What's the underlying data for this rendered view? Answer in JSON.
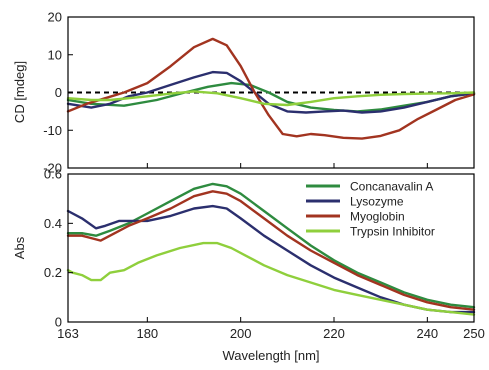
{
  "chart_data": [
    {
      "type": "line",
      "panel": "top",
      "ylabel": "CD [mdeg]",
      "xlim": [
        163,
        250
      ],
      "ylim": [
        -20,
        20
      ],
      "yticks": [
        "20",
        "10",
        "0",
        "-10",
        "-20"
      ],
      "grid": false,
      "zero_line": "dashed",
      "series": [
        {
          "name": "Concanavalin A",
          "color": "#2e8b3f",
          "points": [
            [
              163,
              -2
            ],
            [
              168,
              -3
            ],
            [
              175,
              -3.5
            ],
            [
              182,
              -2
            ],
            [
              188,
              0
            ],
            [
              193,
              1.5
            ],
            [
              198,
              2.5
            ],
            [
              202,
              2
            ],
            [
              206,
              0
            ],
            [
              210,
              -2.5
            ],
            [
              215,
              -4
            ],
            [
              220,
              -4.6
            ],
            [
              225,
              -5
            ],
            [
              230,
              -4.5
            ],
            [
              235,
              -3.5
            ],
            [
              240,
              -2.5
            ],
            [
              245,
              -1
            ],
            [
              250,
              -0.2
            ]
          ]
        },
        {
          "name": "Lysozyme",
          "color": "#2b2f6e",
          "points": [
            [
              163,
              -3
            ],
            [
              168,
              -4
            ],
            [
              172,
              -3
            ],
            [
              176,
              -1
            ],
            [
              180,
              0
            ],
            [
              185,
              2
            ],
            [
              190,
              4
            ],
            [
              194,
              5.4
            ],
            [
              197,
              5.2
            ],
            [
              200,
              3
            ],
            [
              203,
              0
            ],
            [
              206,
              -3
            ],
            [
              210,
              -5
            ],
            [
              214,
              -5.3
            ],
            [
              218,
              -5
            ],
            [
              222,
              -4.8
            ],
            [
              226,
              -5.3
            ],
            [
              230,
              -5
            ],
            [
              235,
              -4
            ],
            [
              240,
              -2.5
            ],
            [
              245,
              -1
            ],
            [
              250,
              -0.2
            ]
          ]
        },
        {
          "name": "Myoglobin",
          "color": "#a23420",
          "points": [
            [
              163,
              -5
            ],
            [
              167,
              -3
            ],
            [
              171,
              -1.5
            ],
            [
              175,
              0
            ],
            [
              180,
              2.5
            ],
            [
              185,
              7
            ],
            [
              190,
              12
            ],
            [
              194,
              14.2
            ],
            [
              197,
              12.5
            ],
            [
              200,
              7
            ],
            [
              203,
              0
            ],
            [
              206,
              -6
            ],
            [
              209,
              -11
            ],
            [
              212,
              -11.6
            ],
            [
              215,
              -11
            ],
            [
              218,
              -11.3
            ],
            [
              222,
              -12
            ],
            [
              226,
              -12.2
            ],
            [
              230,
              -11.5
            ],
            [
              234,
              -10
            ],
            [
              238,
              -7
            ],
            [
              242,
              -4.5
            ],
            [
              246,
              -2
            ],
            [
              250,
              -0.5
            ]
          ]
        },
        {
          "name": "Trypsin Inhibitor",
          "color": "#8fcf3c",
          "points": [
            [
              163,
              -1.5
            ],
            [
              168,
              -2
            ],
            [
              172,
              -2
            ],
            [
              176,
              -1.5
            ],
            [
              180,
              -1
            ],
            [
              185,
              -0.3
            ],
            [
              190,
              0.3
            ],
            [
              195,
              -0.2
            ],
            [
              200,
              -1.5
            ],
            [
              205,
              -3
            ],
            [
              210,
              -3.3
            ],
            [
              215,
              -2.5
            ],
            [
              220,
              -1.5
            ],
            [
              225,
              -1
            ],
            [
              230,
              -0.6
            ],
            [
              235,
              -0.4
            ],
            [
              240,
              -0.3
            ],
            [
              245,
              -0.2
            ],
            [
              250,
              0
            ]
          ]
        }
      ]
    },
    {
      "type": "line",
      "panel": "bottom",
      "xlabel": "Wavelength [nm]",
      "ylabel": "Abs",
      "xlim": [
        163,
        250
      ],
      "ylim": [
        0,
        0.6
      ],
      "xticks": [
        "163",
        "180",
        "200",
        "220",
        "240",
        "250"
      ],
      "yticks": [
        "0.6",
        "0.4",
        "0.2",
        "0"
      ],
      "grid": false,
      "legend": "top-right",
      "series": [
        {
          "name": "Concanavalin A",
          "color": "#2e8b3f",
          "points": [
            [
              163,
              0.36
            ],
            [
              166,
              0.36
            ],
            [
              169,
              0.35
            ],
            [
              172,
              0.37
            ],
            [
              176,
              0.4
            ],
            [
              180,
              0.44
            ],
            [
              185,
              0.49
            ],
            [
              190,
              0.54
            ],
            [
              194,
              0.56
            ],
            [
              197,
              0.55
            ],
            [
              200,
              0.52
            ],
            [
              205,
              0.45
            ],
            [
              210,
              0.38
            ],
            [
              215,
              0.31
            ],
            [
              220,
              0.25
            ],
            [
              225,
              0.2
            ],
            [
              230,
              0.16
            ],
            [
              235,
              0.12
            ],
            [
              240,
              0.09
            ],
            [
              245,
              0.07
            ],
            [
              250,
              0.06
            ]
          ]
        },
        {
          "name": "Lysozyme",
          "color": "#2b2f6e",
          "points": [
            [
              163,
              0.45
            ],
            [
              166,
              0.42
            ],
            [
              169,
              0.38
            ],
            [
              171,
              0.39
            ],
            [
              174,
              0.41
            ],
            [
              177,
              0.41
            ],
            [
              180,
              0.41
            ],
            [
              185,
              0.43
            ],
            [
              190,
              0.46
            ],
            [
              194,
              0.47
            ],
            [
              197,
              0.46
            ],
            [
              200,
              0.42
            ],
            [
              205,
              0.35
            ],
            [
              210,
              0.29
            ],
            [
              215,
              0.23
            ],
            [
              220,
              0.18
            ],
            [
              225,
              0.14
            ],
            [
              230,
              0.1
            ],
            [
              235,
              0.07
            ],
            [
              240,
              0.05
            ],
            [
              245,
              0.04
            ],
            [
              250,
              0.04
            ]
          ]
        },
        {
          "name": "Myoglobin",
          "color": "#a23420",
          "points": [
            [
              163,
              0.35
            ],
            [
              166,
              0.35
            ],
            [
              168,
              0.34
            ],
            [
              170,
              0.33
            ],
            [
              173,
              0.36
            ],
            [
              176,
              0.39
            ],
            [
              180,
              0.42
            ],
            [
              185,
              0.46
            ],
            [
              190,
              0.51
            ],
            [
              194,
              0.53
            ],
            [
              197,
              0.52
            ],
            [
              200,
              0.49
            ],
            [
              205,
              0.42
            ],
            [
              210,
              0.35
            ],
            [
              215,
              0.29
            ],
            [
              220,
              0.24
            ],
            [
              225,
              0.19
            ],
            [
              230,
              0.15
            ],
            [
              235,
              0.11
            ],
            [
              240,
              0.08
            ],
            [
              245,
              0.06
            ],
            [
              250,
              0.05
            ]
          ]
        },
        {
          "name": "Trypsin Inhibitor",
          "color": "#8fcf3c",
          "points": [
            [
              163,
              0.21
            ],
            [
              164,
              0.2
            ],
            [
              166,
              0.19
            ],
            [
              168,
              0.17
            ],
            [
              170,
              0.17
            ],
            [
              172,
              0.2
            ],
            [
              175,
              0.21
            ],
            [
              178,
              0.24
            ],
            [
              182,
              0.27
            ],
            [
              187,
              0.3
            ],
            [
              192,
              0.32
            ],
            [
              195,
              0.32
            ],
            [
              198,
              0.3
            ],
            [
              201,
              0.27
            ],
            [
              205,
              0.23
            ],
            [
              210,
              0.19
            ],
            [
              215,
              0.16
            ],
            [
              220,
              0.13
            ],
            [
              225,
              0.11
            ],
            [
              230,
              0.09
            ],
            [
              235,
              0.07
            ],
            [
              240,
              0.05
            ],
            [
              245,
              0.04
            ],
            [
              250,
              0.03
            ]
          ]
        }
      ]
    }
  ]
}
